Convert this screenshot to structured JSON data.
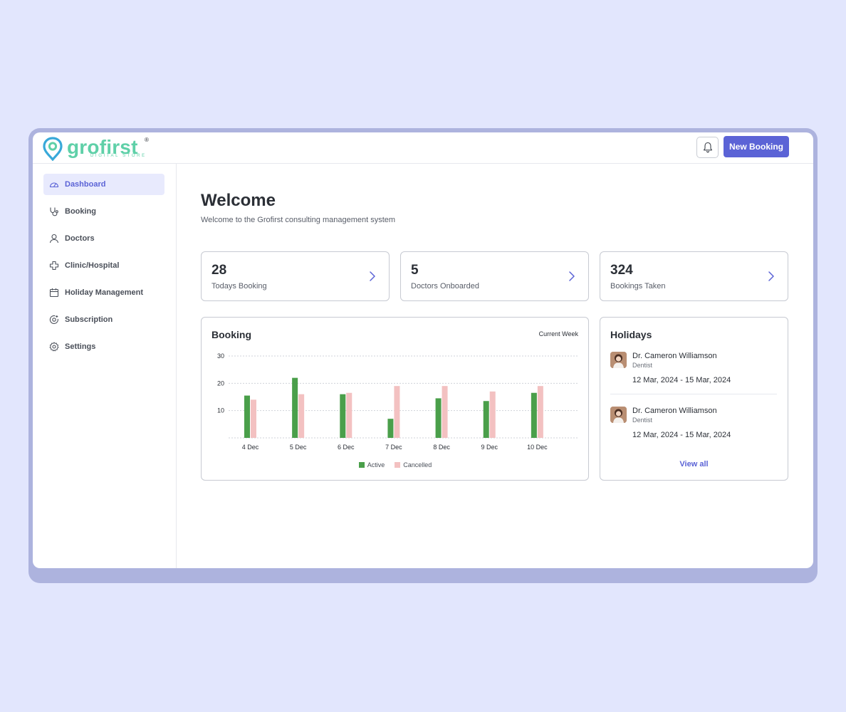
{
  "brand": {
    "name": "grofirst",
    "registered_mark": "®",
    "tagline": "DIGITAL STORE",
    "color": "#5fd0a8"
  },
  "header": {
    "notification_icon": "bell-icon",
    "new_booking_label": "New Booking",
    "accent_color": "#5b63d6"
  },
  "sidebar": {
    "items": [
      {
        "label": "Dashboard",
        "icon": "gauge-icon",
        "active": true
      },
      {
        "label": "Booking",
        "icon": "stethoscope-icon",
        "active": false
      },
      {
        "label": "Doctors",
        "icon": "user-icon",
        "active": false
      },
      {
        "label": "Clinic/Hospital",
        "icon": "medical-cross-icon",
        "active": false
      },
      {
        "label": "Holiday Management",
        "icon": "calendar-icon",
        "active": false
      },
      {
        "label": "Subscription",
        "icon": "subscription-icon",
        "active": false
      },
      {
        "label": "Settings",
        "icon": "gear-icon",
        "active": false
      }
    ]
  },
  "welcome": {
    "title": "Welcome",
    "subtitle": "Welcome to the Grofirst consulting management system"
  },
  "stats": [
    {
      "value": "28",
      "label": "Todays Booking"
    },
    {
      "value": "5",
      "label": "Doctors Onboarded"
    },
    {
      "value": "324",
      "label": "Bookings Taken"
    }
  ],
  "booking_panel": {
    "title": "Booking",
    "range_label": "Current Week"
  },
  "chart_data": {
    "type": "bar",
    "categories": [
      "4 Dec",
      "5 Dec",
      "6 Dec",
      "7 Dec",
      "8 Dec",
      "9 Dec",
      "10 Dec"
    ],
    "series": [
      {
        "name": "Active",
        "values": [
          15.5,
          22,
          16,
          7,
          14.5,
          13.5,
          16.5
        ],
        "color": "#4a9f4a"
      },
      {
        "name": "Cancelled",
        "values": [
          14,
          16,
          16.5,
          19,
          19,
          17,
          19
        ],
        "color": "#f3c1c1"
      }
    ],
    "yticks": [
      10,
      20,
      30
    ],
    "ylim": [
      0,
      30
    ],
    "grid": true,
    "legend": "bottom-center"
  },
  "holidays": {
    "title": "Holidays",
    "items": [
      {
        "name": "Dr. Cameron Williamson",
        "role": "Dentist",
        "dates": "12 Mar, 2024 - 15 Mar, 2024"
      },
      {
        "name": "Dr. Cameron Williamson",
        "role": "Dentist",
        "dates": "12 Mar, 2024 - 15 Mar, 2024"
      }
    ],
    "view_all_label": "View all"
  }
}
